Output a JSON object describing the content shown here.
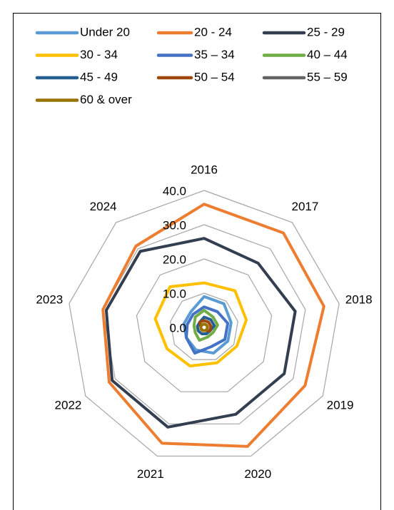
{
  "chart_data": {
    "type": "radar",
    "categories": [
      "2016",
      "2017",
      "2018",
      "2019",
      "2020",
      "2021",
      "2022",
      "2023",
      "2024"
    ],
    "ylim": [
      0,
      40
    ],
    "yticks": [
      {
        "value": 0,
        "label": "0.0"
      },
      {
        "value": 10,
        "label": "10.0"
      },
      {
        "value": 20,
        "label": "20.0"
      },
      {
        "value": 30,
        "label": "30.0"
      },
      {
        "value": 40,
        "label": "40.0"
      }
    ],
    "grid": true,
    "legend": "top",
    "series": [
      {
        "name": "Under 20",
        "color": "#5b9bd5",
        "values": [
          9,
          9,
          8,
          8,
          8,
          7,
          6,
          6,
          6
        ]
      },
      {
        "name": "20 - 24",
        "color": "#ed7d31",
        "values": [
          36,
          36,
          35.5,
          34,
          37,
          36,
          32,
          30,
          31
        ]
      },
      {
        "name": "25 - 29",
        "color": "#333f50",
        "values": [
          26,
          24.5,
          27,
          27,
          27,
          31,
          31,
          29,
          29
        ]
      },
      {
        "name": "30 - 34",
        "color": "#ffc000",
        "values": [
          13,
          14,
          12.5,
          11,
          11,
          12,
          12.5,
          14.5,
          15.5
        ]
      },
      {
        "name": "35 – 34",
        "color": "#4472c4",
        "values": [
          6,
          6,
          7,
          7,
          6,
          8,
          6,
          5,
          5
        ]
      },
      {
        "name": "40 – 44",
        "color": "#70ad47",
        "values": [
          5,
          4,
          4,
          3,
          3,
          4,
          3,
          3,
          4
        ]
      },
      {
        "name": "45 - 49",
        "color": "#255e91",
        "values": [
          3,
          3,
          3,
          2,
          2,
          2,
          2,
          2,
          2
        ]
      },
      {
        "name": "50 – 54",
        "color": "#9e480e",
        "values": [
          2,
          2,
          2,
          2,
          1,
          1,
          1,
          1,
          2
        ]
      },
      {
        "name": "55 – 59",
        "color": "#636363",
        "values": [
          1,
          1,
          1,
          1,
          1,
          1,
          1,
          1,
          1
        ]
      },
      {
        "name": "60 & over",
        "color": "#997300",
        "values": [
          1,
          1,
          1,
          1,
          1,
          1,
          1,
          1,
          1
        ]
      }
    ]
  }
}
